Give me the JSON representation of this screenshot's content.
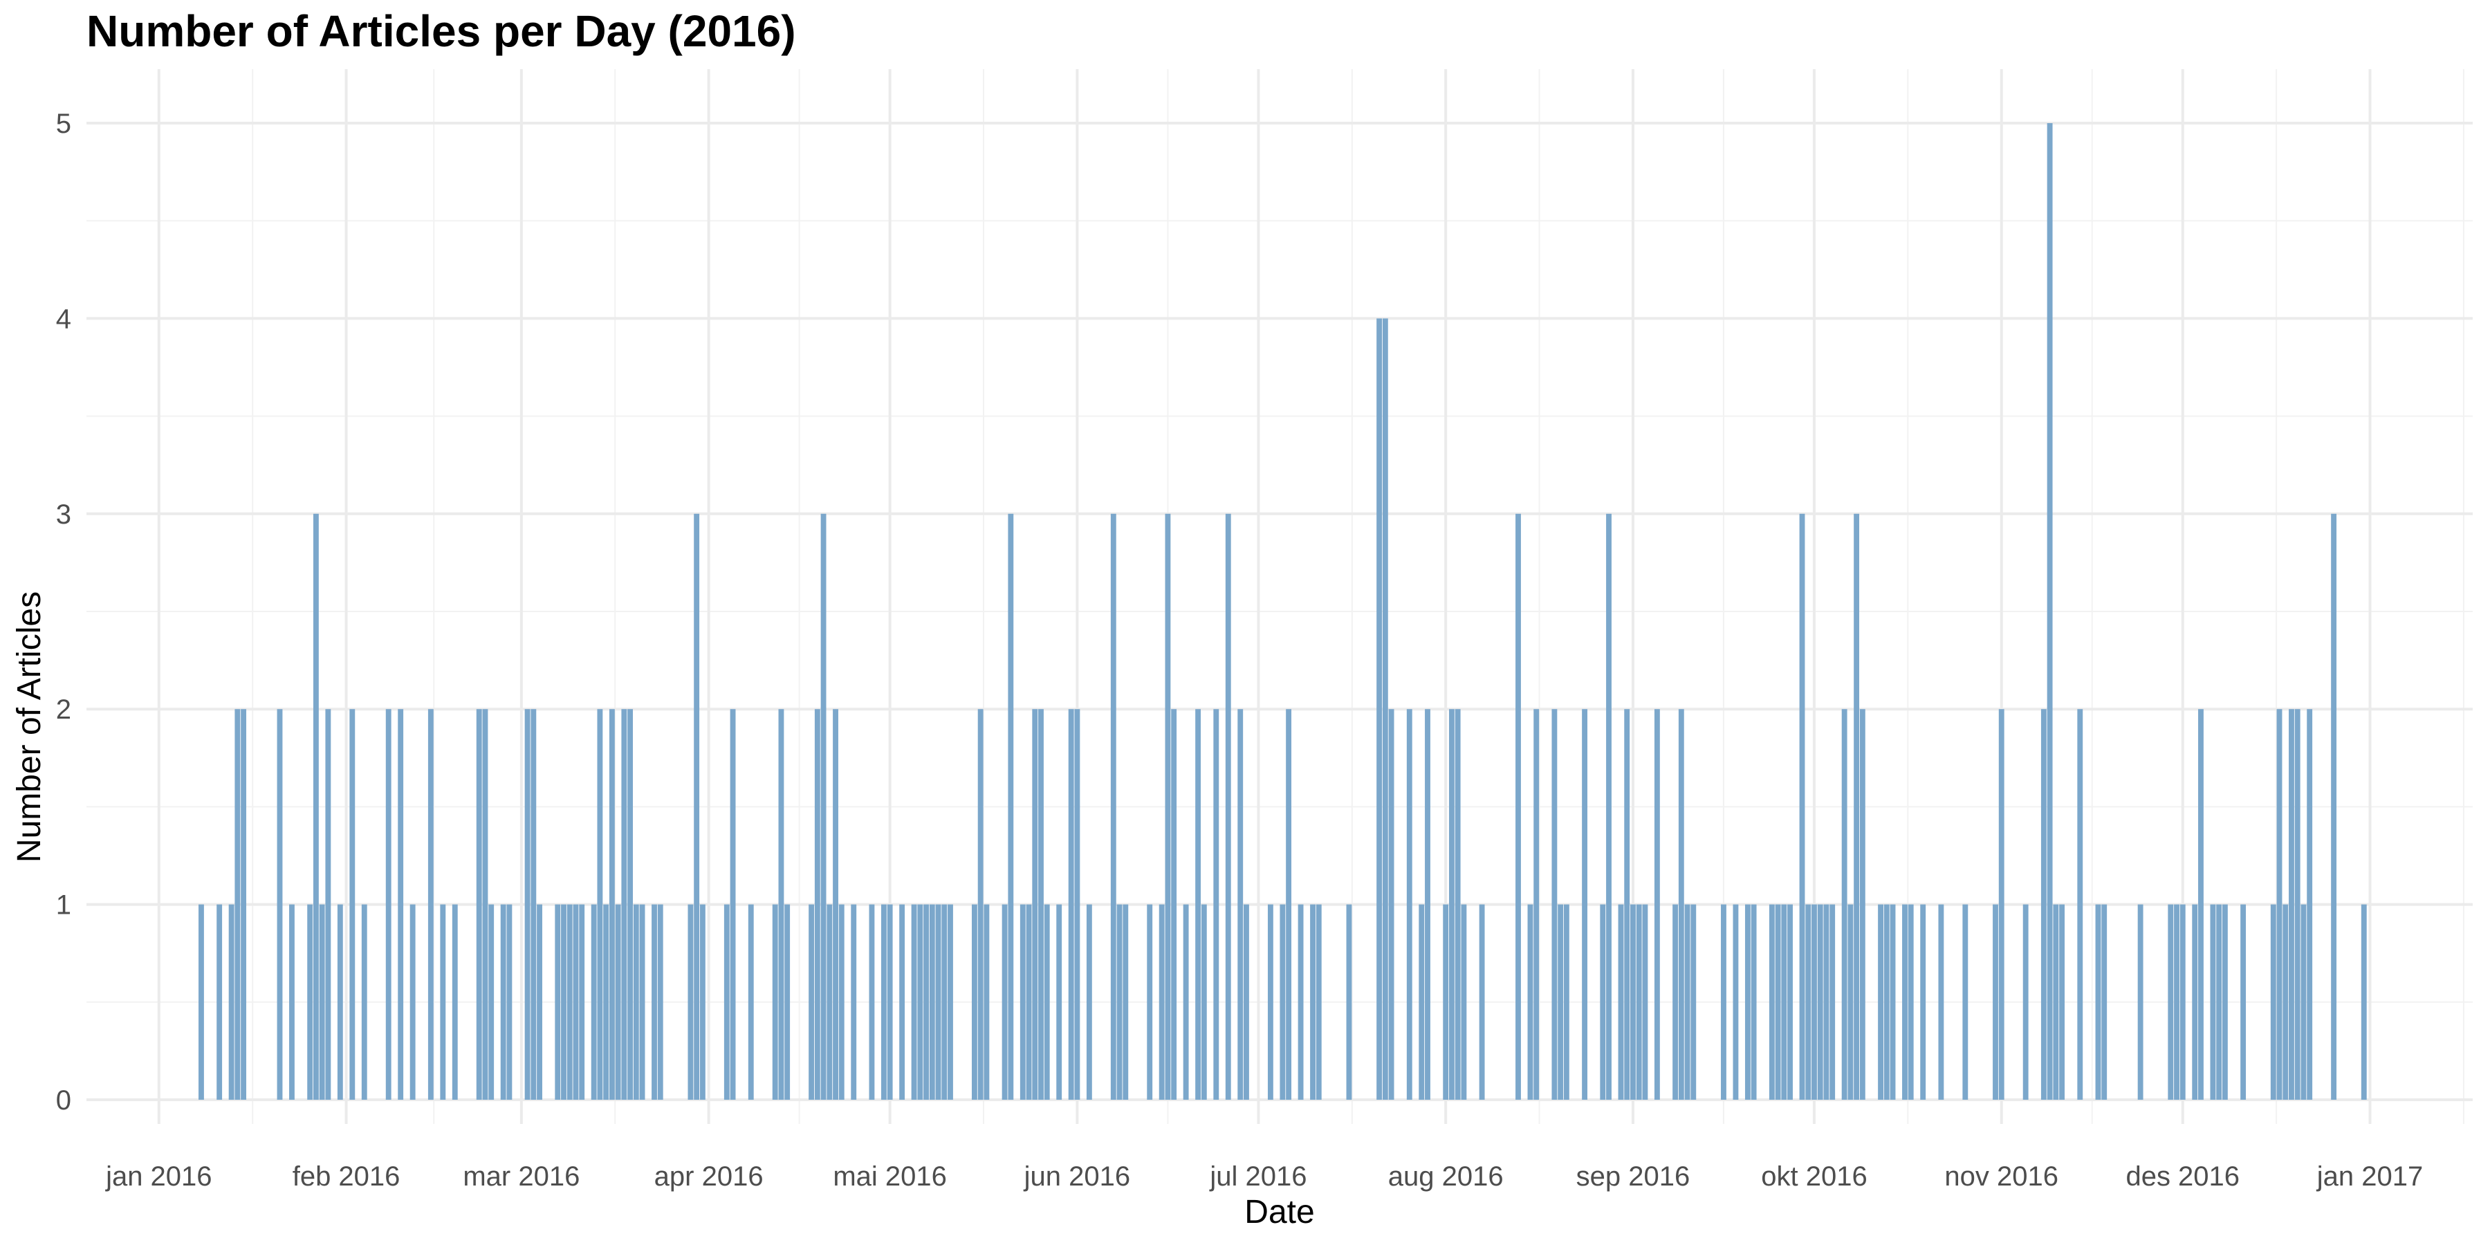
{
  "chart_data": {
    "type": "bar",
    "title": "Number of Articles per Day (2016)",
    "xlabel": "Date",
    "ylabel": "Number of Articles",
    "x_range": [
      "2015-12-20",
      "2017-01-18"
    ],
    "ylim": [
      0,
      5
    ],
    "y_ticks": [
      0,
      1,
      2,
      3,
      4,
      5
    ],
    "x_ticks": [
      {
        "date": "2016-01-01",
        "label": "jan 2016"
      },
      {
        "date": "2016-02-01",
        "label": "feb 2016"
      },
      {
        "date": "2016-03-01",
        "label": "mar 2016"
      },
      {
        "date": "2016-04-01",
        "label": "apr 2016"
      },
      {
        "date": "2016-05-01",
        "label": "mai 2016"
      },
      {
        "date": "2016-06-01",
        "label": "jun 2016"
      },
      {
        "date": "2016-07-01",
        "label": "jul 2016"
      },
      {
        "date": "2016-08-01",
        "label": "aug 2016"
      },
      {
        "date": "2016-09-01",
        "label": "sep 2016"
      },
      {
        "date": "2016-10-01",
        "label": "okt 2016"
      },
      {
        "date": "2016-11-01",
        "label": "nov 2016"
      },
      {
        "date": "2016-12-01",
        "label": "des 2016"
      },
      {
        "date": "2017-01-01",
        "label": "jan 2017"
      }
    ],
    "grid": true,
    "bar_color": "#7BA7CB",
    "series": [
      {
        "points": [
          [
            "2016-01-08",
            1
          ],
          [
            "2016-01-11",
            1
          ],
          [
            "2016-01-13",
            1
          ],
          [
            "2016-01-14",
            2
          ],
          [
            "2016-01-15",
            2
          ],
          [
            "2016-01-21",
            2
          ],
          [
            "2016-01-23",
            1
          ],
          [
            "2016-01-26",
            1
          ],
          [
            "2016-01-27",
            3
          ],
          [
            "2016-01-28",
            1
          ],
          [
            "2016-01-29",
            2
          ],
          [
            "2016-01-31",
            1
          ],
          [
            "2016-02-02",
            2
          ],
          [
            "2016-02-04",
            1
          ],
          [
            "2016-02-08",
            2
          ],
          [
            "2016-02-10",
            2
          ],
          [
            "2016-02-12",
            1
          ],
          [
            "2016-02-15",
            2
          ],
          [
            "2016-02-17",
            1
          ],
          [
            "2016-02-19",
            1
          ],
          [
            "2016-02-23",
            2
          ],
          [
            "2016-02-24",
            2
          ],
          [
            "2016-02-25",
            1
          ],
          [
            "2016-02-27",
            1
          ],
          [
            "2016-02-28",
            1
          ],
          [
            "2016-03-02",
            2
          ],
          [
            "2016-03-03",
            2
          ],
          [
            "2016-03-04",
            1
          ],
          [
            "2016-03-07",
            1
          ],
          [
            "2016-03-08",
            1
          ],
          [
            "2016-03-09",
            1
          ],
          [
            "2016-03-10",
            1
          ],
          [
            "2016-03-11",
            1
          ],
          [
            "2016-03-13",
            1
          ],
          [
            "2016-03-14",
            2
          ],
          [
            "2016-03-15",
            1
          ],
          [
            "2016-03-16",
            2
          ],
          [
            "2016-03-17",
            1
          ],
          [
            "2016-03-18",
            2
          ],
          [
            "2016-03-19",
            2
          ],
          [
            "2016-03-20",
            1
          ],
          [
            "2016-03-21",
            1
          ],
          [
            "2016-03-23",
            1
          ],
          [
            "2016-03-24",
            1
          ],
          [
            "2016-03-29",
            1
          ],
          [
            "2016-03-30",
            3
          ],
          [
            "2016-03-31",
            1
          ],
          [
            "2016-04-04",
            1
          ],
          [
            "2016-04-05",
            2
          ],
          [
            "2016-04-08",
            1
          ],
          [
            "2016-04-12",
            1
          ],
          [
            "2016-04-13",
            2
          ],
          [
            "2016-04-14",
            1
          ],
          [
            "2016-04-18",
            1
          ],
          [
            "2016-04-19",
            2
          ],
          [
            "2016-04-20",
            3
          ],
          [
            "2016-04-21",
            1
          ],
          [
            "2016-04-22",
            2
          ],
          [
            "2016-04-23",
            1
          ],
          [
            "2016-04-25",
            1
          ],
          [
            "2016-04-28",
            1
          ],
          [
            "2016-04-30",
            1
          ],
          [
            "2016-05-01",
            1
          ],
          [
            "2016-05-03",
            1
          ],
          [
            "2016-05-05",
            1
          ],
          [
            "2016-05-06",
            1
          ],
          [
            "2016-05-07",
            1
          ],
          [
            "2016-05-08",
            1
          ],
          [
            "2016-05-09",
            1
          ],
          [
            "2016-05-10",
            1
          ],
          [
            "2016-05-11",
            1
          ],
          [
            "2016-05-15",
            1
          ],
          [
            "2016-05-16",
            2
          ],
          [
            "2016-05-17",
            1
          ],
          [
            "2016-05-20",
            1
          ],
          [
            "2016-05-21",
            3
          ],
          [
            "2016-05-23",
            1
          ],
          [
            "2016-05-24",
            1
          ],
          [
            "2016-05-25",
            2
          ],
          [
            "2016-05-26",
            2
          ],
          [
            "2016-05-27",
            1
          ],
          [
            "2016-05-29",
            1
          ],
          [
            "2016-05-31",
            2
          ],
          [
            "2016-06-01",
            2
          ],
          [
            "2016-06-03",
            1
          ],
          [
            "2016-06-07",
            3
          ],
          [
            "2016-06-08",
            1
          ],
          [
            "2016-06-09",
            1
          ],
          [
            "2016-06-13",
            1
          ],
          [
            "2016-06-15",
            1
          ],
          [
            "2016-06-16",
            3
          ],
          [
            "2016-06-17",
            2
          ],
          [
            "2016-06-19",
            1
          ],
          [
            "2016-06-21",
            2
          ],
          [
            "2016-06-22",
            1
          ],
          [
            "2016-06-24",
            2
          ],
          [
            "2016-06-26",
            3
          ],
          [
            "2016-06-28",
            2
          ],
          [
            "2016-06-29",
            1
          ],
          [
            "2016-07-03",
            1
          ],
          [
            "2016-07-05",
            1
          ],
          [
            "2016-07-06",
            2
          ],
          [
            "2016-07-08",
            1
          ],
          [
            "2016-07-10",
            1
          ],
          [
            "2016-07-11",
            1
          ],
          [
            "2016-07-16",
            1
          ],
          [
            "2016-07-21",
            4
          ],
          [
            "2016-07-22",
            4
          ],
          [
            "2016-07-23",
            2
          ],
          [
            "2016-07-26",
            2
          ],
          [
            "2016-07-28",
            1
          ],
          [
            "2016-07-29",
            2
          ],
          [
            "2016-08-01",
            1
          ],
          [
            "2016-08-02",
            2
          ],
          [
            "2016-08-03",
            2
          ],
          [
            "2016-08-04",
            1
          ],
          [
            "2016-08-07",
            1
          ],
          [
            "2016-08-13",
            3
          ],
          [
            "2016-08-15",
            1
          ],
          [
            "2016-08-16",
            2
          ],
          [
            "2016-08-19",
            2
          ],
          [
            "2016-08-20",
            1
          ],
          [
            "2016-08-21",
            1
          ],
          [
            "2016-08-24",
            2
          ],
          [
            "2016-08-27",
            1
          ],
          [
            "2016-08-28",
            3
          ],
          [
            "2016-08-30",
            1
          ],
          [
            "2016-08-31",
            2
          ],
          [
            "2016-09-01",
            1
          ],
          [
            "2016-09-02",
            1
          ],
          [
            "2016-09-03",
            1
          ],
          [
            "2016-09-05",
            2
          ],
          [
            "2016-09-08",
            1
          ],
          [
            "2016-09-09",
            2
          ],
          [
            "2016-09-10",
            1
          ],
          [
            "2016-09-11",
            1
          ],
          [
            "2016-09-16",
            1
          ],
          [
            "2016-09-18",
            1
          ],
          [
            "2016-09-20",
            1
          ],
          [
            "2016-09-21",
            1
          ],
          [
            "2016-09-24",
            1
          ],
          [
            "2016-09-25",
            1
          ],
          [
            "2016-09-26",
            1
          ],
          [
            "2016-09-27",
            1
          ],
          [
            "2016-09-29",
            3
          ],
          [
            "2016-09-30",
            1
          ],
          [
            "2016-10-01",
            1
          ],
          [
            "2016-10-02",
            1
          ],
          [
            "2016-10-03",
            1
          ],
          [
            "2016-10-04",
            1
          ],
          [
            "2016-10-06",
            2
          ],
          [
            "2016-10-07",
            1
          ],
          [
            "2016-10-08",
            3
          ],
          [
            "2016-10-09",
            2
          ],
          [
            "2016-10-12",
            1
          ],
          [
            "2016-10-13",
            1
          ],
          [
            "2016-10-14",
            1
          ],
          [
            "2016-10-16",
            1
          ],
          [
            "2016-10-17",
            1
          ],
          [
            "2016-10-19",
            1
          ],
          [
            "2016-10-22",
            1
          ],
          [
            "2016-10-26",
            1
          ],
          [
            "2016-10-31",
            1
          ],
          [
            "2016-11-01",
            2
          ],
          [
            "2016-11-05",
            1
          ],
          [
            "2016-11-08",
            2
          ],
          [
            "2016-11-09",
            5
          ],
          [
            "2016-11-10",
            1
          ],
          [
            "2016-11-11",
            1
          ],
          [
            "2016-11-14",
            2
          ],
          [
            "2016-11-17",
            1
          ],
          [
            "2016-11-18",
            1
          ],
          [
            "2016-11-24",
            1
          ],
          [
            "2016-11-29",
            1
          ],
          [
            "2016-11-30",
            1
          ],
          [
            "2016-12-01",
            1
          ],
          [
            "2016-12-03",
            1
          ],
          [
            "2016-12-04",
            2
          ],
          [
            "2016-12-06",
            1
          ],
          [
            "2016-12-07",
            1
          ],
          [
            "2016-12-08",
            1
          ],
          [
            "2016-12-11",
            1
          ],
          [
            "2016-12-16",
            1
          ],
          [
            "2016-12-17",
            2
          ],
          [
            "2016-12-18",
            1
          ],
          [
            "2016-12-19",
            2
          ],
          [
            "2016-12-20",
            2
          ],
          [
            "2016-12-21",
            1
          ],
          [
            "2016-12-22",
            2
          ],
          [
            "2016-12-26",
            3
          ],
          [
            "2016-12-31",
            1
          ]
        ]
      }
    ]
  }
}
